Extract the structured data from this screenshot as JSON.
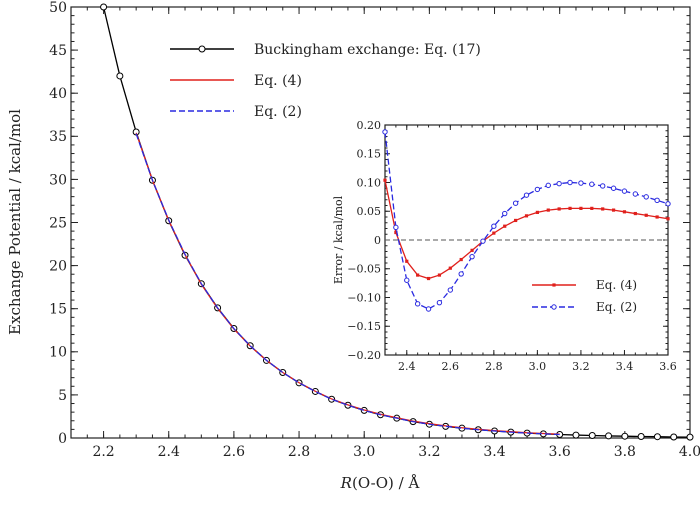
{
  "chart_data": [
    {
      "type": "line",
      "xlabel_italic": "R",
      "xlabel_rest": "(O-O)  / Å",
      "ylabel": "Exchange Potential / kcal/mol",
      "xlim": [
        2.1,
        4.0
      ],
      "ylim": [
        0,
        50
      ],
      "xticks": [
        "2.2",
        "2.4",
        "2.6",
        "2.8",
        "3.0",
        "3.2",
        "3.4",
        "3.6",
        "3.8",
        "4.0"
      ],
      "yticks": [
        "0",
        "5",
        "10",
        "15",
        "20",
        "25",
        "30",
        "35",
        "40",
        "45",
        "50"
      ],
      "legend_position": "top-center",
      "series": [
        {
          "name": "Buckingham exchange: Eq. (17)",
          "color": "#000000",
          "style": "solid-circle",
          "x": [
            2.2,
            2.25,
            2.3,
            2.35,
            2.4,
            2.45,
            2.5,
            2.55,
            2.6,
            2.65,
            2.7,
            2.75,
            2.8,
            2.85,
            2.9,
            2.95,
            3.0,
            3.05,
            3.1,
            3.15,
            3.2,
            3.25,
            3.3,
            3.35,
            3.4,
            3.45,
            3.5,
            3.55,
            3.6,
            3.65,
            3.7,
            3.75,
            3.8,
            3.85,
            3.9,
            3.95,
            4.0
          ],
          "y": [
            50,
            42,
            35.5,
            29.9,
            25.2,
            21.2,
            17.9,
            15.1,
            12.7,
            10.7,
            9.0,
            7.6,
            6.4,
            5.4,
            4.5,
            3.8,
            3.2,
            2.7,
            2.3,
            1.9,
            1.6,
            1.35,
            1.14,
            0.96,
            0.81,
            0.68,
            0.57,
            0.48,
            0.41,
            0.34,
            0.29,
            0.24,
            0.21,
            0.17,
            0.15,
            0.12,
            0.1
          ]
        },
        {
          "name": "Eq. (4)",
          "color": "#e0201c",
          "style": "solid",
          "x": [
            2.3,
            2.35,
            2.4,
            2.45,
            2.5,
            2.55,
            2.6,
            2.65,
            2.7,
            2.75,
            2.8,
            2.85,
            2.9,
            2.95,
            3.0,
            3.05,
            3.1,
            3.15,
            3.2,
            3.25,
            3.3,
            3.35,
            3.4,
            3.45,
            3.5,
            3.55,
            3.6
          ],
          "y": [
            35.4,
            29.9,
            25.24,
            21.26,
            17.83,
            15.04,
            12.65,
            10.67,
            9.0,
            7.6,
            6.41,
            5.42,
            4.53,
            3.84,
            3.25,
            2.75,
            2.35,
            1.96,
            1.66,
            1.41,
            1.19,
            1.01,
            0.86,
            0.73,
            0.61,
            0.52,
            0.45
          ]
        },
        {
          "name": "Eq. (2)",
          "color": "#2a2ae0",
          "style": "dashed",
          "x": [
            2.3,
            2.35,
            2.4,
            2.45,
            2.5,
            2.55,
            2.6,
            2.65,
            2.7,
            2.75,
            2.8,
            2.85,
            2.9,
            2.95,
            3.0,
            3.05,
            3.1,
            3.15,
            3.2,
            3.25,
            3.3,
            3.35,
            3.4,
            3.45,
            3.5,
            3.55,
            3.6
          ],
          "y": [
            35.3,
            29.9,
            25.27,
            21.31,
            17.9,
            15.09,
            12.69,
            10.69,
            9.01,
            7.6,
            6.4,
            5.4,
            4.5,
            3.8,
            3.2,
            2.7,
            2.3,
            1.9,
            1.6,
            1.35,
            1.14,
            0.96,
            0.81,
            0.68,
            0.57,
            0.48,
            0.41
          ]
        }
      ]
    },
    {
      "type": "line",
      "ylabel": "Error / kcal/mol",
      "xlim": [
        2.3,
        3.6
      ],
      "ylim": [
        -0.2,
        0.2
      ],
      "xticks": [
        "2.4",
        "2.6",
        "2.8",
        "3.0",
        "3.2",
        "3.4",
        "3.6"
      ],
      "yticks": [
        "0.20",
        "0.15",
        "0.10",
        "0.05",
        "0",
        "−0.05",
        "−0.10",
        "−0.15",
        "−0.20"
      ],
      "legend_position": "bottom-right",
      "zero_line": true,
      "series": [
        {
          "name": "Eq. (4)",
          "color": "#e0201c",
          "style": "solid-dot",
          "x": [
            2.3,
            2.35,
            2.4,
            2.45,
            2.5,
            2.55,
            2.6,
            2.65,
            2.7,
            2.75,
            2.8,
            2.85,
            2.9,
            2.95,
            3.0,
            3.05,
            3.1,
            3.15,
            3.2,
            3.25,
            3.3,
            3.35,
            3.4,
            3.45,
            3.5,
            3.55,
            3.6
          ],
          "y": [
            0.104,
            0.013,
            -0.037,
            -0.061,
            -0.067,
            -0.061,
            -0.049,
            -0.034,
            -0.018,
            -0.002,
            0.012,
            0.024,
            0.034,
            0.042,
            0.048,
            0.052,
            0.054,
            0.055,
            0.055,
            0.055,
            0.054,
            0.052,
            0.049,
            0.046,
            0.043,
            0.04,
            0.037
          ]
        },
        {
          "name": "Eq. (2)",
          "color": "#2a2ae0",
          "style": "dashed-circle",
          "x": [
            2.3,
            2.35,
            2.4,
            2.45,
            2.5,
            2.55,
            2.6,
            2.65,
            2.7,
            2.75,
            2.8,
            2.85,
            2.9,
            2.95,
            3.0,
            3.05,
            3.1,
            3.15,
            3.2,
            3.25,
            3.3,
            3.35,
            3.4,
            3.45,
            3.5,
            3.55,
            3.6
          ],
          "y": [
            0.188,
            0.022,
            -0.07,
            -0.111,
            -0.12,
            -0.109,
            -0.087,
            -0.059,
            -0.029,
            -0.002,
            0.024,
            0.046,
            0.064,
            0.078,
            0.088,
            0.095,
            0.098,
            0.1,
            0.099,
            0.097,
            0.094,
            0.09,
            0.085,
            0.08,
            0.075,
            0.069,
            0.063
          ]
        }
      ]
    }
  ]
}
